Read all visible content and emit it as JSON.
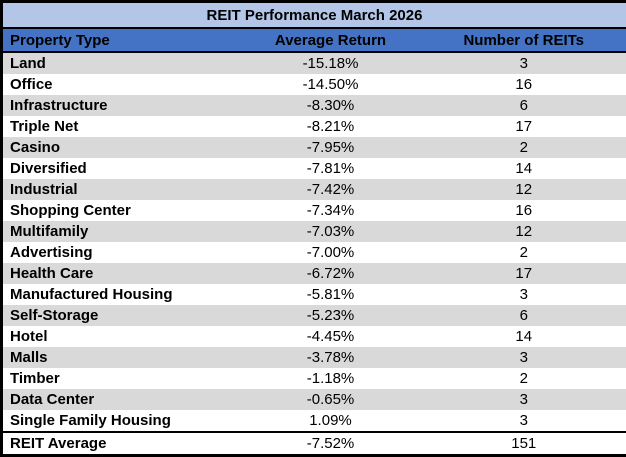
{
  "colors": {
    "title_bg": "#B4C6E7",
    "header_bg": "#4472C4",
    "row_band_bg": "#D9D9D9",
    "row_bg": "#FFFFFF",
    "border": "#000000",
    "text": "#000000"
  },
  "chart_data": {
    "type": "table",
    "title": "REIT Performance March 2026",
    "columns": [
      "Property Type",
      "Average Return",
      "Number of REITs"
    ],
    "rows": [
      [
        "Land",
        "-15.18%",
        "3"
      ],
      [
        "Office",
        "-14.50%",
        "16"
      ],
      [
        "Infrastructure",
        "-8.30%",
        "6"
      ],
      [
        "Triple Net",
        "-8.21%",
        "17"
      ],
      [
        "Casino",
        "-7.95%",
        "2"
      ],
      [
        "Diversified",
        "-7.81%",
        "14"
      ],
      [
        "Industrial",
        "-7.42%",
        "12"
      ],
      [
        "Shopping Center",
        "-7.34%",
        "16"
      ],
      [
        "Multifamily",
        "-7.03%",
        "12"
      ],
      [
        "Advertising",
        "-7.00%",
        "2"
      ],
      [
        "Health Care",
        "-6.72%",
        "17"
      ],
      [
        "Manufactured Housing",
        "-5.81%",
        "3"
      ],
      [
        "Self-Storage",
        "-5.23%",
        "6"
      ],
      [
        "Hotel",
        "-4.45%",
        "14"
      ],
      [
        "Malls",
        "-3.78%",
        "3"
      ],
      [
        "Timber",
        "-1.18%",
        "2"
      ],
      [
        "Data Center",
        "-0.65%",
        "3"
      ],
      [
        "Single Family Housing",
        "1.09%",
        "3"
      ]
    ],
    "footer": [
      "REIT Average",
      "-7.52%",
      "151"
    ]
  }
}
